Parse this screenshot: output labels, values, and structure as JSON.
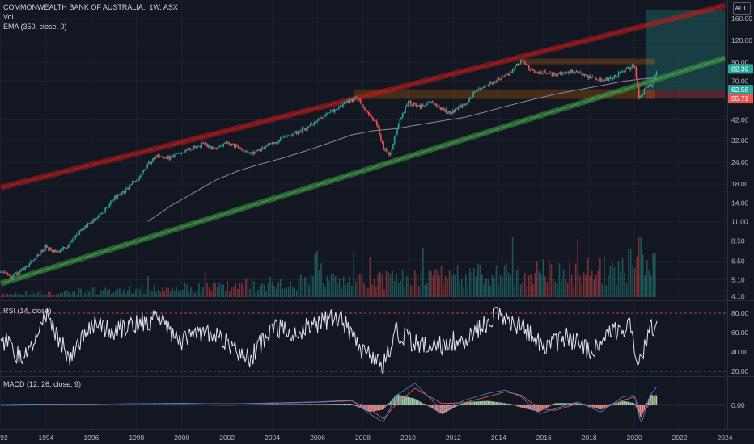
{
  "header": {
    "symbol_line": "COMMONWEALTH BANK OF AUSTRALIA., 1W, ASX",
    "vol_label": "Vol",
    "ema_label": "EMA (350, close, 0)",
    "currency": "AUD"
  },
  "rsi_panel": {
    "label": "RSI (14, close)"
  },
  "macd_panel": {
    "label": "MACD (12, 26, close, 9)"
  },
  "colors": {
    "background": "#131722",
    "bull": "#26a69a",
    "bear": "#ef5350",
    "red_channel": "#b71c1c",
    "green_channel": "#43a047",
    "zone": "#f57c00",
    "ema": "#8a8d96",
    "rsi_line": "#e0e3eb",
    "macd_line": "#3f7fd6",
    "signal_line": "#f0534a",
    "grid": "#1e222d",
    "separator": "#2a2e39"
  },
  "chart_data": [
    {
      "type": "line",
      "title": "COMMONWEALTH BANK OF AUSTRALIA., 1W, ASX",
      "scale": "log",
      "ylim": [
        4.1,
        180
      ],
      "x_range": [
        1992,
        2024
      ],
      "x_ticks": [
        "92",
        "1994",
        "1996",
        "1998",
        "2000",
        "2002",
        "2004",
        "2006",
        "2008",
        "2010",
        "2012",
        "2014",
        "2016",
        "2018",
        "2020",
        "2022",
        "2024"
      ],
      "y_ticks": [
        "160.00",
        "120.00",
        "90.00",
        "70.00",
        "42.00",
        "32.00",
        "24.00",
        "18.00",
        "14.00",
        "11.00",
        "8.50",
        "6.50",
        "5.10",
        "4.10"
      ],
      "price_series": {
        "name": "Price",
        "x": [
          1992.0,
          1992.5,
          1993.0,
          1993.5,
          1994.0,
          1994.5,
          1995.0,
          1995.5,
          1996.0,
          1996.5,
          1997.0,
          1997.5,
          1998.0,
          1998.5,
          1999.0,
          1999.5,
          2000.0,
          2000.5,
          2001.0,
          2001.5,
          2002.0,
          2002.5,
          2003.0,
          2003.5,
          2004.0,
          2004.5,
          2005.0,
          2005.5,
          2006.0,
          2006.5,
          2007.0,
          2007.5,
          2007.8,
          2008.2,
          2008.6,
          2008.9,
          2009.2,
          2009.6,
          2010.0,
          2010.5,
          2011.0,
          2011.5,
          2011.9,
          2012.5,
          2013.0,
          2013.5,
          2014.0,
          2014.5,
          2015.0,
          2015.3,
          2015.7,
          2016.0,
          2016.5,
          2017.0,
          2017.5,
          2018.0,
          2018.5,
          2019.0,
          2019.5,
          2020.0,
          2020.2,
          2020.5,
          2020.8,
          2021.0
        ],
        "y": [
          5.6,
          5.3,
          5.9,
          6.7,
          7.9,
          7.2,
          8.1,
          9.6,
          11.0,
          12.4,
          15.0,
          16.5,
          19.0,
          23.5,
          26.5,
          25.5,
          27.5,
          29.5,
          30.5,
          28.5,
          31.0,
          29.0,
          27.0,
          28.5,
          31.0,
          33.0,
          35.5,
          37.5,
          42.0,
          46.0,
          50.5,
          54.5,
          56.5,
          46.0,
          41.0,
          29.0,
          26.5,
          41.0,
          53.0,
          50.0,
          53.0,
          48.0,
          46.0,
          52.0,
          62.0,
          66.0,
          72.0,
          77.0,
          93.0,
          84.0,
          78.0,
          79.0,
          76.0,
          80.0,
          78.0,
          74.0,
          71.0,
          73.0,
          80.0,
          86.0,
          55.7,
          64.0,
          66.0,
          82.39
        ]
      },
      "ema_series": {
        "name": "EMA (350, close, 0)",
        "x": [
          1998.5,
          1999.5,
          2000.5,
          2001.5,
          2002.5,
          2003.5,
          2004.5,
          2005.5,
          2006.5,
          2007.5,
          2008.5,
          2009.5,
          2010.5,
          2011.5,
          2012.5,
          2013.5,
          2014.5,
          2015.5,
          2016.5,
          2017.5,
          2018.5,
          2019.5,
          2020.5,
          2020.9
        ],
        "y": [
          11.0,
          13.5,
          16.0,
          19.0,
          21.5,
          23.5,
          25.5,
          28.0,
          31.0,
          34.5,
          36.5,
          37.5,
          39.5,
          41.5,
          43.5,
          47.0,
          51.0,
          55.0,
          59.0,
          62.5,
          66.0,
          70.0,
          72.5,
          73.0
        ]
      },
      "price_tags": [
        "82.39",
        "62.58",
        "55.71"
      ],
      "current_price": 82.39,
      "zones": [
        {
          "x0": 2007.6,
          "x1": 2020.9,
          "y0": 55.7,
          "y1": 62.6
        },
        {
          "x0": 2015.0,
          "x1": 2020.9,
          "y0": 88.0,
          "y1": 94.0
        }
      ],
      "target_box": {
        "x0": 2020.5,
        "x1": 2024,
        "y_top": 180,
        "y_entry": 62.58,
        "y_stop": 55.71
      },
      "channel_lines": [
        {
          "name": "upper channel",
          "x": [
            1992.0,
            2024.0
          ],
          "y": [
            17.2,
            190.0
          ]
        },
        {
          "name": "lower channel",
          "x": [
            1992.0,
            2024.0
          ],
          "y": [
            4.85,
            95.0
          ]
        }
      ],
      "volume": {
        "label": "Vol",
        "recent_spike_year": 2020.2
      }
    },
    {
      "type": "line",
      "title": "RSI (14, close)",
      "ylim": [
        15,
        90
      ],
      "y_ticks": [
        "80.00",
        "60.00",
        "40.00",
        "20.00"
      ],
      "levels": [
        80,
        20
      ],
      "x": [
        1992.0,
        1993.0,
        1994.0,
        1995.0,
        1996.0,
        1997.0,
        1998.0,
        1999.0,
        2000.0,
        2001.0,
        2002.0,
        2003.0,
        2004.0,
        2005.0,
        2006.0,
        2007.0,
        2008.0,
        2008.9,
        2009.5,
        2010.5,
        2011.5,
        2012.5,
        2013.5,
        2014.0,
        2015.0,
        2016.0,
        2017.0,
        2018.0,
        2019.0,
        2019.8,
        2020.2,
        2020.5,
        2021.0
      ],
      "y": [
        55,
        30,
        80,
        35,
        70,
        62,
        68,
        74,
        50,
        62,
        48,
        32,
        65,
        60,
        70,
        75,
        40,
        25,
        62,
        45,
        48,
        55,
        70,
        82,
        65,
        45,
        55,
        42,
        58,
        70,
        22,
        55,
        70
      ]
    },
    {
      "type": "line",
      "title": "MACD (12, 26, close, 9)",
      "y_ticks": [
        "0.00"
      ],
      "x": [
        1992.0,
        1994.0,
        1996.0,
        1998.0,
        2000.0,
        2002.0,
        2004.0,
        2006.0,
        2007.5,
        2008.3,
        2008.9,
        2009.5,
        2010.3,
        2011.5,
        2012.5,
        2013.5,
        2014.3,
        2015.0,
        2015.8,
        2016.5,
        2017.5,
        2018.5,
        2019.5,
        2020.0,
        2020.3,
        2020.7,
        2021.0
      ],
      "macd": [
        0.0,
        0.2,
        0.3,
        0.5,
        0.6,
        0.4,
        0.7,
        1.0,
        1.5,
        -2.5,
        -5.0,
        3.0,
        6.5,
        -1.5,
        1.5,
        3.5,
        4.5,
        2.5,
        -2.5,
        -1.0,
        1.0,
        -2.0,
        2.5,
        3.0,
        -5.5,
        3.0,
        5.5
      ],
      "signal": [
        0.0,
        0.15,
        0.25,
        0.45,
        0.55,
        0.45,
        0.6,
        0.9,
        1.3,
        -1.0,
        -4.0,
        0.5,
        5.0,
        0.5,
        0.8,
        2.5,
        4.0,
        3.0,
        -1.0,
        -1.5,
        0.5,
        -1.0,
        1.5,
        2.5,
        -2.5,
        0.5,
        3.5
      ]
    }
  ]
}
